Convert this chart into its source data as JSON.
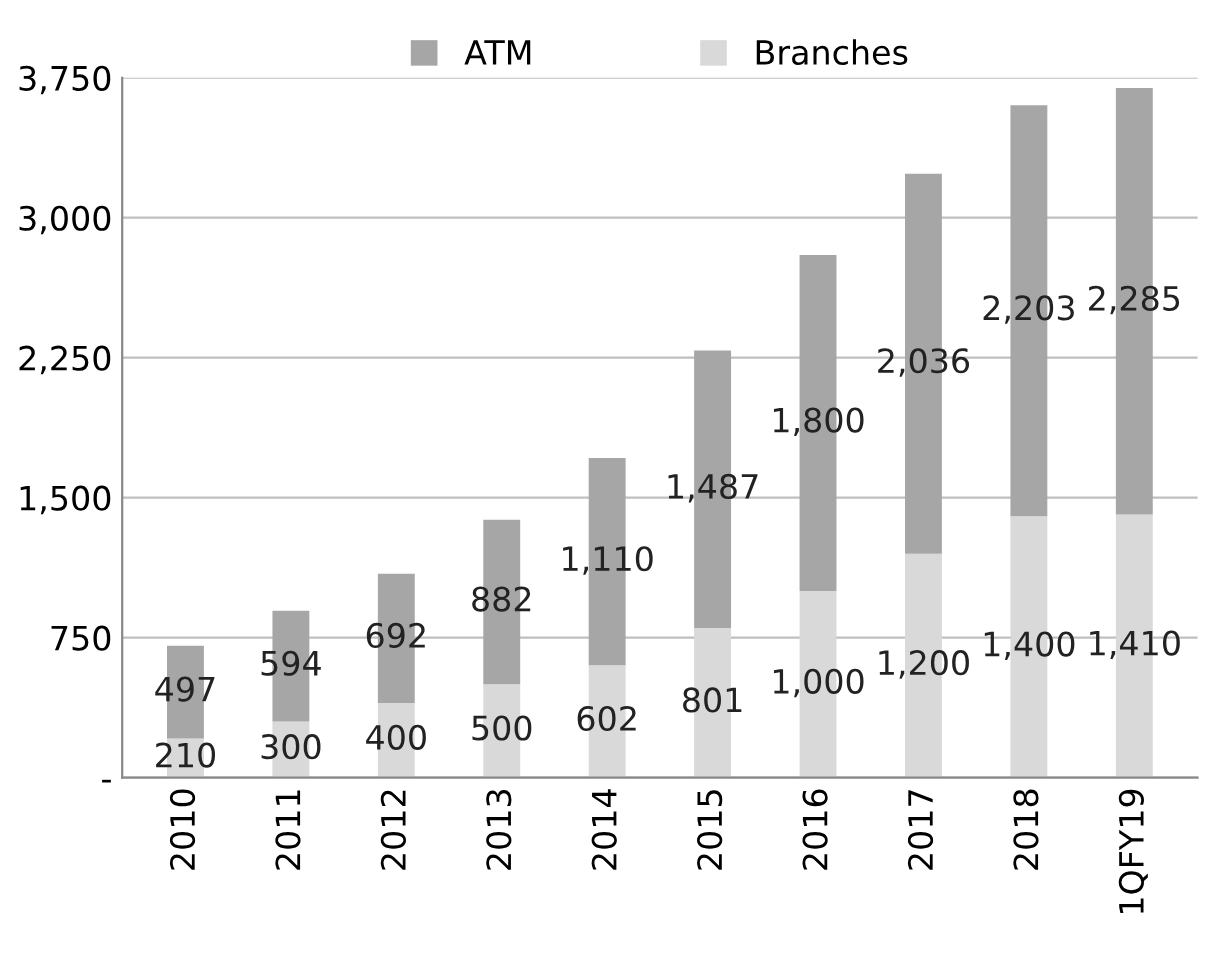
{
  "chart_data": {
    "type": "bar",
    "stacked": true,
    "categories": [
      "2010",
      "2011",
      "2012",
      "2013",
      "2014",
      "2015",
      "2016",
      "2017",
      "2018",
      "1QFY19"
    ],
    "series": [
      {
        "name": "Branches",
        "color": "#d9d9d9",
        "values": [
          210,
          300,
          400,
          500,
          602,
          801,
          1000,
          1200,
          1400,
          1410
        ],
        "value_labels": [
          "210",
          "300",
          "400",
          "500",
          "602",
          "801",
          "1,000",
          "1,200",
          "1,400",
          "1,410"
        ]
      },
      {
        "name": "ATM",
        "color": "#a6a6a6",
        "values": [
          497,
          594,
          692,
          882,
          1110,
          1487,
          1800,
          2036,
          2203,
          2285
        ],
        "value_labels": [
          "497",
          "594",
          "692",
          "882",
          "1,110",
          "1,487",
          "1,800",
          "2,036",
          "2,203",
          "2,285"
        ]
      }
    ],
    "ylim": [
      0,
      3750
    ],
    "yticks": [
      {
        "value": 0,
        "label": "-"
      },
      {
        "value": 750,
        "label": "750"
      },
      {
        "value": 1500,
        "label": "1,500"
      },
      {
        "value": 2250,
        "label": "2,250"
      },
      {
        "value": 3000,
        "label": "3,000"
      },
      {
        "value": 3750,
        "label": "3,750"
      }
    ],
    "grid": "y",
    "legend": "top"
  }
}
